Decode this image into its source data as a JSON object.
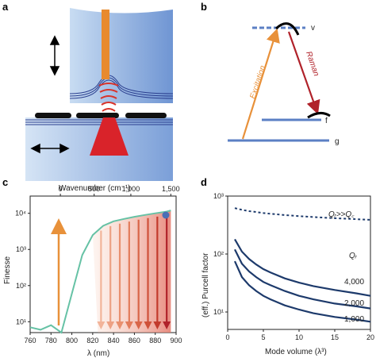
{
  "panels": {
    "a": {
      "letter": "a"
    },
    "b": {
      "letter": "b",
      "level_v": "v",
      "level_f": "f",
      "level_g": "g",
      "excitation_label": "Excitation",
      "raman_label": "Raman",
      "colors": {
        "excitation": "#e8913a",
        "raman": "#b0222a",
        "level": "#5b7fc4"
      }
    },
    "c": {
      "letter": "c",
      "top_axis_label": "Wavenumber (cm⁻¹)",
      "top_ticks": [
        "0",
        "500",
        "1,000",
        "1,500"
      ],
      "x_label": "λ (nm)",
      "y_label": "Finesse",
      "x_ticks": [
        "760",
        "780",
        "800",
        "820",
        "840",
        "860",
        "880",
        "900"
      ],
      "y_ticks": [
        "10¹",
        "10²",
        "10³",
        "10⁴"
      ]
    },
    "d": {
      "letter": "d",
      "x_label": "Mode volume (λ³)",
      "y_label": "(eff.) Purcell factor",
      "x_ticks": [
        "0",
        "5",
        "10",
        "15",
        "20"
      ],
      "y_ticks": [
        "10¹",
        "10²",
        "10³"
      ],
      "annotation": "Qᵣ>>Q꜀",
      "q_label": "Qᵣ",
      "curve_labels": [
        "4,000",
        "2,000",
        "1,000"
      ]
    }
  },
  "chart_data": [
    {
      "type": "line",
      "x": [
        760,
        770,
        780,
        790,
        800,
        810,
        820,
        830,
        840,
        850,
        860,
        870,
        880,
        890,
        895
      ],
      "series": [
        {
          "values": [
            7,
            6,
            8,
            5,
            60,
            700,
            2500,
            4500,
            6000,
            7000,
            8000,
            9000,
            10000,
            11000,
            12000
          ]
        }
      ],
      "xlim": [
        760,
        900
      ],
      "ylim": [
        5,
        30000
      ],
      "y_scale": "log",
      "xlabel": "λ (nm)",
      "ylabel": "Finesse"
    },
    {
      "type": "line",
      "x": [
        1,
        2,
        3,
        4,
        5,
        6,
        8,
        10,
        12,
        15,
        18,
        20
      ],
      "series": [
        {
          "name": "Qᵣ>>Q꜀",
          "values": [
            620,
            580,
            550,
            530,
            510,
            495,
            470,
            450,
            435,
            415,
            400,
            390
          ]
        },
        {
          "name": "4,000",
          "values": [
            180,
            110,
            82,
            66,
            55,
            48,
            38,
            32,
            28,
            24,
            21,
            19
          ]
        },
        {
          "name": "2,000",
          "values": [
            120,
            68,
            50,
            40,
            33,
            29,
            23,
            19,
            16.5,
            14,
            12.5,
            11.5
          ]
        },
        {
          "name": "1,000",
          "values": [
            75,
            40,
            29,
            23,
            19,
            16.5,
            13,
            11,
            9.5,
            8.2,
            7.4,
            6.8
          ]
        }
      ],
      "xlim": [
        0,
        20
      ],
      "ylim": [
        5,
        1000
      ],
      "y_scale": "log",
      "xlabel": "Mode volume (λ³)",
      "ylabel": "(eff.) Purcell factor"
    }
  ]
}
